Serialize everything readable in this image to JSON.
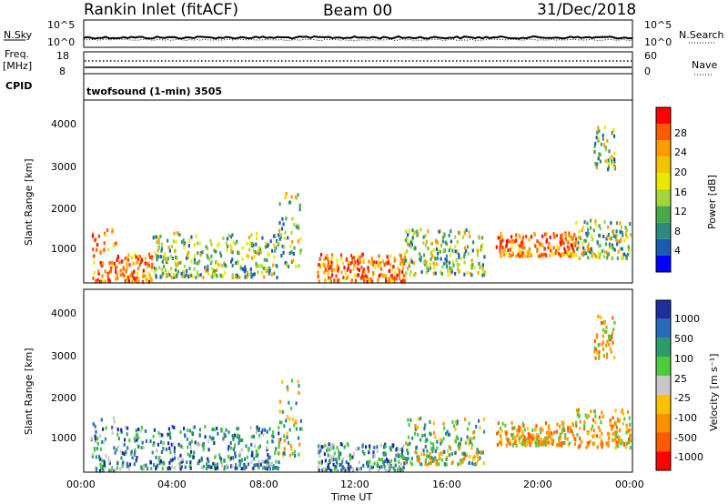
{
  "header": {
    "station": "Rankin Inlet (fitACF)",
    "beam": "Beam 00",
    "date": "31/Dec/2018"
  },
  "noise_panel": {
    "left_label": "N.Sky",
    "left_ticks": [
      "10^5",
      "10^0"
    ],
    "right_label": "N.Search",
    "right_ticks": [
      "10^5",
      "10^0"
    ]
  },
  "freq_panel": {
    "left_label_1": "Freq.",
    "left_label_2": "[MHz]",
    "left_ticks": [
      "18",
      "8"
    ],
    "right_label": "Nave",
    "right_ticks": [
      "60",
      "0"
    ]
  },
  "cpid_panel": {
    "label": "CPID",
    "text": "twofsound (1-min) 3505"
  },
  "power_panel": {
    "ylabel": "Slant Range [km]",
    "yticks": [
      "4000",
      "3000",
      "2000",
      "1000"
    ],
    "colorbar_label": "Power [dB]",
    "colorbar_ticks": [
      "28",
      "24",
      "20",
      "16",
      "12",
      "8",
      "4"
    ],
    "colorbar_colors": [
      "#ff0000",
      "#ff5a00",
      "#ff9a00",
      "#f2c400",
      "#e8e800",
      "#a0d83c",
      "#4aa84a",
      "#2e8a7a",
      "#1c5cb0",
      "#0000ff"
    ]
  },
  "velocity_panel": {
    "ylabel": "Slant Range [km]",
    "yticks": [
      "4000",
      "3000",
      "2000",
      "1000"
    ],
    "colorbar_label": "Velocity [m s⁻¹]",
    "colorbar_ticks": [
      "1000",
      "500",
      "100",
      "25",
      "-25",
      "-100",
      "-500",
      "-1000"
    ],
    "colorbar_colors": [
      "#1e2f9c",
      "#2a6cb8",
      "#2f9a6a",
      "#4ccc3a",
      "#c8c8c8",
      "#ffc000",
      "#ff9000",
      "#ff5a00",
      "#ff0000"
    ]
  },
  "xaxis": {
    "ticks": [
      "00:00",
      "04:00",
      "08:00",
      "12:00",
      "16:00",
      "20:00",
      "00:00"
    ],
    "label": "Time UT"
  },
  "chart_data": [
    {
      "type": "heatmap",
      "name": "power",
      "x_unit": "hours UT",
      "xlim": [
        0,
        24
      ],
      "ylim": [
        180,
        4500
      ],
      "colorbar_range_db": [
        0,
        30
      ],
      "regions": [
        {
          "t0": 0.3,
          "t1": 1.4,
          "r0": 250,
          "r1": 1500,
          "level": "high"
        },
        {
          "t0": 1.4,
          "t1": 3.0,
          "r0": 250,
          "r1": 900,
          "level": "high"
        },
        {
          "t0": 3.0,
          "t1": 8.5,
          "r0": 350,
          "r1": 1400,
          "level": "medium"
        },
        {
          "t0": 8.5,
          "t1": 9.5,
          "r0": 600,
          "r1": 2400,
          "level": "medium"
        },
        {
          "t0": 10.2,
          "t1": 14.0,
          "r0": 250,
          "r1": 900,
          "level": "high"
        },
        {
          "t0": 14.0,
          "t1": 17.5,
          "r0": 400,
          "r1": 1500,
          "level": "medium"
        },
        {
          "t0": 18.0,
          "t1": 21.5,
          "r0": 850,
          "r1": 1400,
          "level": "high"
        },
        {
          "t0": 21.5,
          "t1": 23.9,
          "r0": 800,
          "r1": 1700,
          "level": "medium"
        },
        {
          "t0": 22.3,
          "t1": 23.2,
          "r0": 2900,
          "r1": 3900,
          "level": "medium"
        }
      ]
    },
    {
      "type": "heatmap",
      "name": "velocity",
      "x_unit": "hours UT",
      "xlim": [
        0,
        24
      ],
      "ylim": [
        180,
        4500
      ],
      "colorbar_range_ms": [
        -1000,
        1000
      ],
      "regions": [
        {
          "t0": 0.3,
          "t1": 1.4,
          "r0": 250,
          "r1": 1500,
          "level": "positive"
        },
        {
          "t0": 1.4,
          "t1": 8.5,
          "r0": 300,
          "r1": 1300,
          "level": "positive"
        },
        {
          "t0": 8.5,
          "t1": 9.5,
          "r0": 600,
          "r1": 2400,
          "level": "mixed"
        },
        {
          "t0": 10.2,
          "t1": 14.0,
          "r0": 250,
          "r1": 900,
          "level": "positive"
        },
        {
          "t0": 14.0,
          "t1": 17.5,
          "r0": 400,
          "r1": 1500,
          "level": "mixed"
        },
        {
          "t0": 18.0,
          "t1": 21.5,
          "r0": 850,
          "r1": 1400,
          "level": "negative"
        },
        {
          "t0": 21.5,
          "t1": 23.9,
          "r0": 800,
          "r1": 1700,
          "level": "negative"
        },
        {
          "t0": 22.3,
          "t1": 23.2,
          "r0": 2900,
          "r1": 3900,
          "level": "negative"
        }
      ]
    }
  ]
}
